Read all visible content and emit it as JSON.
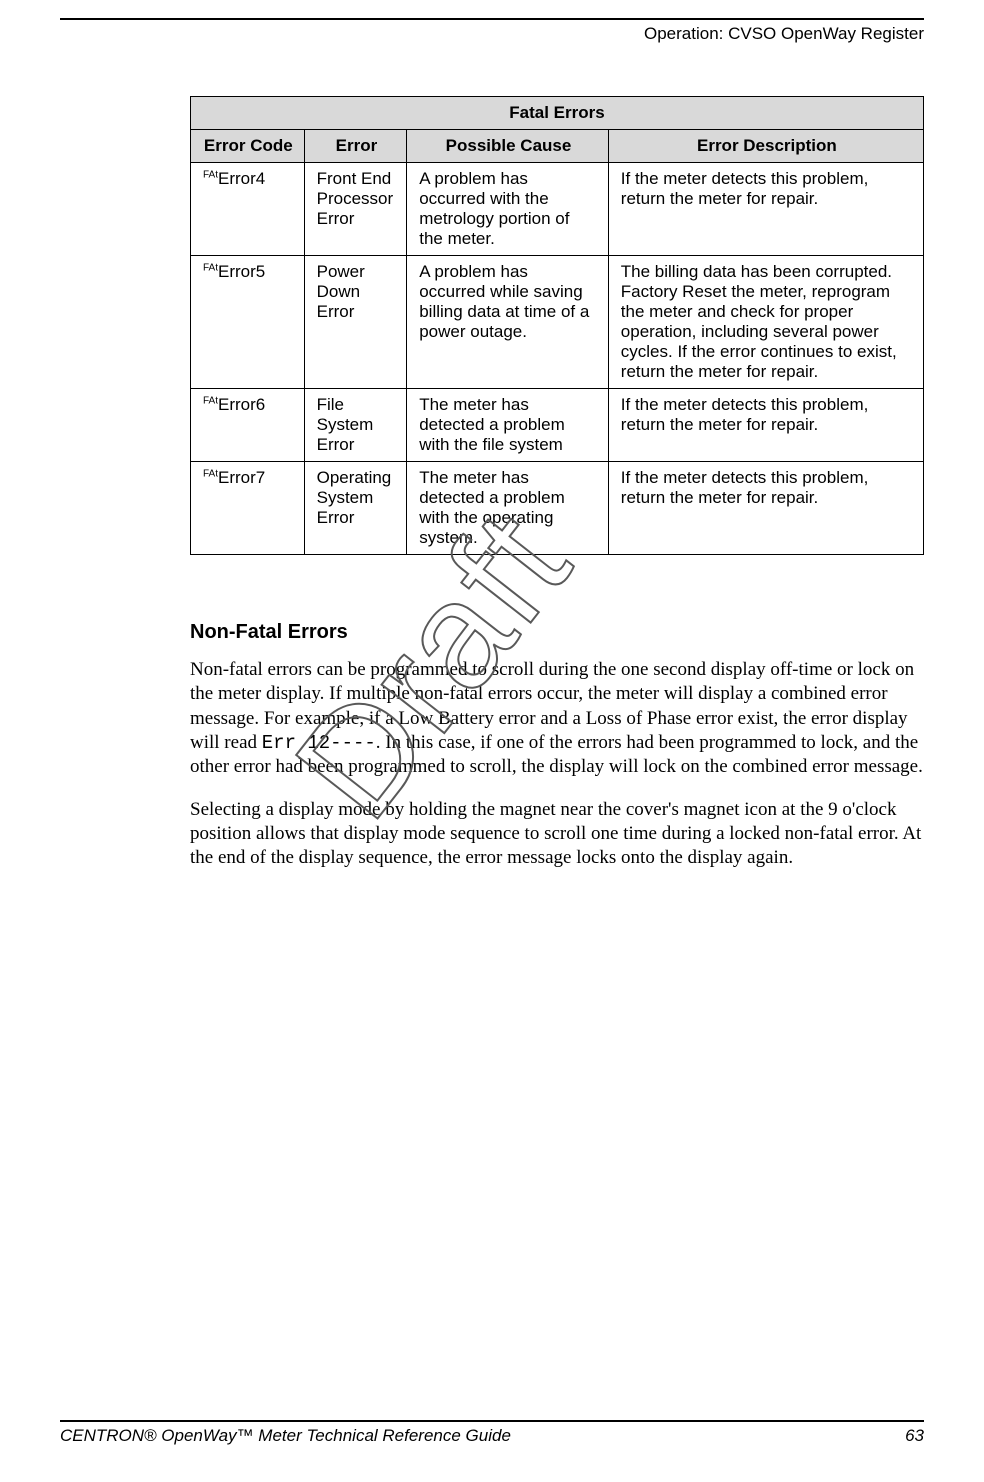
{
  "header": {
    "running_head": "Operation: CVSO OpenWay Register"
  },
  "watermark": "Draft",
  "table": {
    "title": "Fatal Errors",
    "columns": [
      "Error Code",
      "Error",
      "Possible Cause",
      "Error Description"
    ],
    "rows": [
      {
        "code_sup": "FAt",
        "code_main": "Error4",
        "error": "Front End Processor Error",
        "cause": "A problem has occurred with the metrology portion of the meter.",
        "desc": "If the meter detects this problem, return the meter for repair."
      },
      {
        "code_sup": "FAt",
        "code_main": "Error5",
        "error": "Power Down Error",
        "cause": "A problem has occurred while saving billing data at time of a power outage.",
        "desc": "The billing data has been corrupted. Factory Reset the meter, reprogram the meter and check for proper operation, including several power cycles. If the error continues to exist, return the meter for repair."
      },
      {
        "code_sup": "FAt",
        "code_main": "Error6",
        "error": "File System Error",
        "cause": "The meter has detected a problem with the file system",
        "desc": "If the meter detects this problem, return the meter for repair."
      },
      {
        "code_sup": "FAt",
        "code_main": "Error7",
        "error": "Operating System Error",
        "cause": "The meter has detected a problem with the operating system.",
        "desc": "If the meter detects this problem, return the meter for repair."
      }
    ]
  },
  "section": {
    "heading": "Non-Fatal Errors",
    "para1_a": "Non-fatal errors can be programmed to scroll during the one second display off-time or lock on the meter display. If multiple non-fatal errors occur, the meter will display a combined error message. For example, if a Low Battery error and a Loss of Phase error exist, the error display will read ",
    "para1_code": "Err 12----",
    "para1_b": ". In this case, if one of the errors had been programmed to lock, and the other error had been programmed to scroll, the display will lock on the combined error message.",
    "para2": "Selecting a display mode by holding the magnet near the cover's magnet icon at the 9 o'clock position allows that display mode sequence to scroll one time during a locked non-fatal error. At the end of the display sequence, the error message locks onto the display again."
  },
  "footer": {
    "title": "CENTRON® OpenWay™ Meter Technical Reference Guide",
    "page": "63"
  }
}
